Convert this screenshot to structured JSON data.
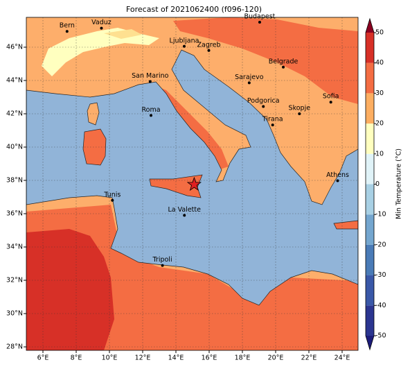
{
  "title": "Forecast of 2021062400 (f096-120)",
  "map": {
    "xticks": [
      {
        "value": 6,
        "label": "6°E"
      },
      {
        "value": 8,
        "label": "8°E"
      },
      {
        "value": 10,
        "label": "10°E"
      },
      {
        "value": 12,
        "label": "12°E"
      },
      {
        "value": 14,
        "label": "14°E"
      },
      {
        "value": 16,
        "label": "16°E"
      },
      {
        "value": 18,
        "label": "18°E"
      },
      {
        "value": 20,
        "label": "20°E"
      },
      {
        "value": 22,
        "label": "22°E"
      },
      {
        "value": 24,
        "label": "24°E"
      }
    ],
    "yticks": [
      {
        "value": 28,
        "label": "28°N"
      },
      {
        "value": 30,
        "label": "30°N"
      },
      {
        "value": 32,
        "label": "32°N"
      },
      {
        "value": 34,
        "label": "34°N"
      },
      {
        "value": 36,
        "label": "36°N"
      },
      {
        "value": 38,
        "label": "38°N"
      },
      {
        "value": 40,
        "label": "40°N"
      },
      {
        "value": 42,
        "label": "42°N"
      },
      {
        "value": 44,
        "label": "44°N"
      },
      {
        "value": 46,
        "label": "46°N"
      }
    ],
    "cities": [
      "Bern",
      "Vaduz",
      "Budapest",
      "Ljubljana",
      "Zagreb",
      "Belgrade",
      "San Marino",
      "Sarajevo",
      "Sofia",
      "Roma",
      "Podgorica",
      "Skopje",
      "Tirana",
      "Athens",
      "Tunis",
      "La Valette",
      "Tripoli"
    ]
  },
  "colorbar": {
    "label": "Min Temperature (°C)",
    "ticks": [
      -50,
      -40,
      -30,
      -20,
      -10,
      0,
      10,
      20,
      30,
      40,
      50
    ],
    "colors": [
      "#2b3590",
      "#3a58a8",
      "#4a7bb7",
      "#74a6cf",
      "#a8d0e4",
      "#e0f3f8",
      "#ffffbf",
      "#fdae61",
      "#f46d43",
      "#d73027"
    ],
    "under": "#1c1c7a",
    "over": "#8b0021"
  }
}
